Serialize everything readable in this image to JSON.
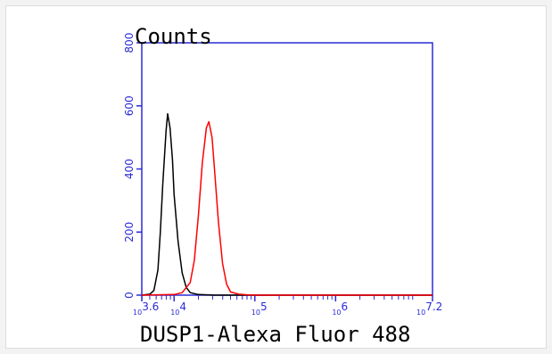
{
  "chart_data": {
    "type": "line",
    "xlabel": "DUSP1-Alexa Fluor 488",
    "ylabel": "Counts",
    "x_scale": "log10",
    "xlim_log10": [
      3.6,
      7.2
    ],
    "ylim": [
      0,
      800
    ],
    "y_ticks": [
      0,
      200,
      400,
      600,
      800
    ],
    "y_tick_labels": [
      "0",
      "200",
      "400",
      "600",
      "800"
    ],
    "x_ticks_log10": [
      3.6,
      4,
      5,
      6,
      7.2
    ],
    "x_tick_labels": [
      {
        "base": "10",
        "exp": "3.6"
      },
      {
        "base": "10",
        "exp": "4"
      },
      {
        "base": "10",
        "exp": "5"
      },
      {
        "base": "10",
        "exp": "6"
      },
      {
        "base": "10",
        "exp": "7.2"
      }
    ],
    "axis_color": "#2b2bd6",
    "series": [
      {
        "color": "#000000",
        "points": [
          [
            3.6,
            0
          ],
          [
            3.7,
            3
          ],
          [
            3.75,
            15
          ],
          [
            3.8,
            80
          ],
          [
            3.83,
            200
          ],
          [
            3.86,
            350
          ],
          [
            3.9,
            520
          ],
          [
            3.92,
            575
          ],
          [
            3.95,
            530
          ],
          [
            3.98,
            430
          ],
          [
            4.0,
            320
          ],
          [
            4.05,
            170
          ],
          [
            4.1,
            70
          ],
          [
            4.15,
            25
          ],
          [
            4.2,
            8
          ],
          [
            4.3,
            2
          ],
          [
            4.5,
            0
          ],
          [
            7.2,
            0
          ]
        ]
      },
      {
        "color": "#ff0000",
        "points": [
          [
            3.6,
            0
          ],
          [
            4.0,
            2
          ],
          [
            4.1,
            8
          ],
          [
            4.2,
            40
          ],
          [
            4.25,
            110
          ],
          [
            4.3,
            250
          ],
          [
            4.35,
            420
          ],
          [
            4.4,
            530
          ],
          [
            4.43,
            550
          ],
          [
            4.47,
            500
          ],
          [
            4.5,
            400
          ],
          [
            4.55,
            230
          ],
          [
            4.6,
            100
          ],
          [
            4.65,
            35
          ],
          [
            4.7,
            10
          ],
          [
            4.8,
            3
          ],
          [
            4.9,
            1
          ],
          [
            5.0,
            0
          ],
          [
            7.2,
            0
          ]
        ]
      }
    ]
  }
}
